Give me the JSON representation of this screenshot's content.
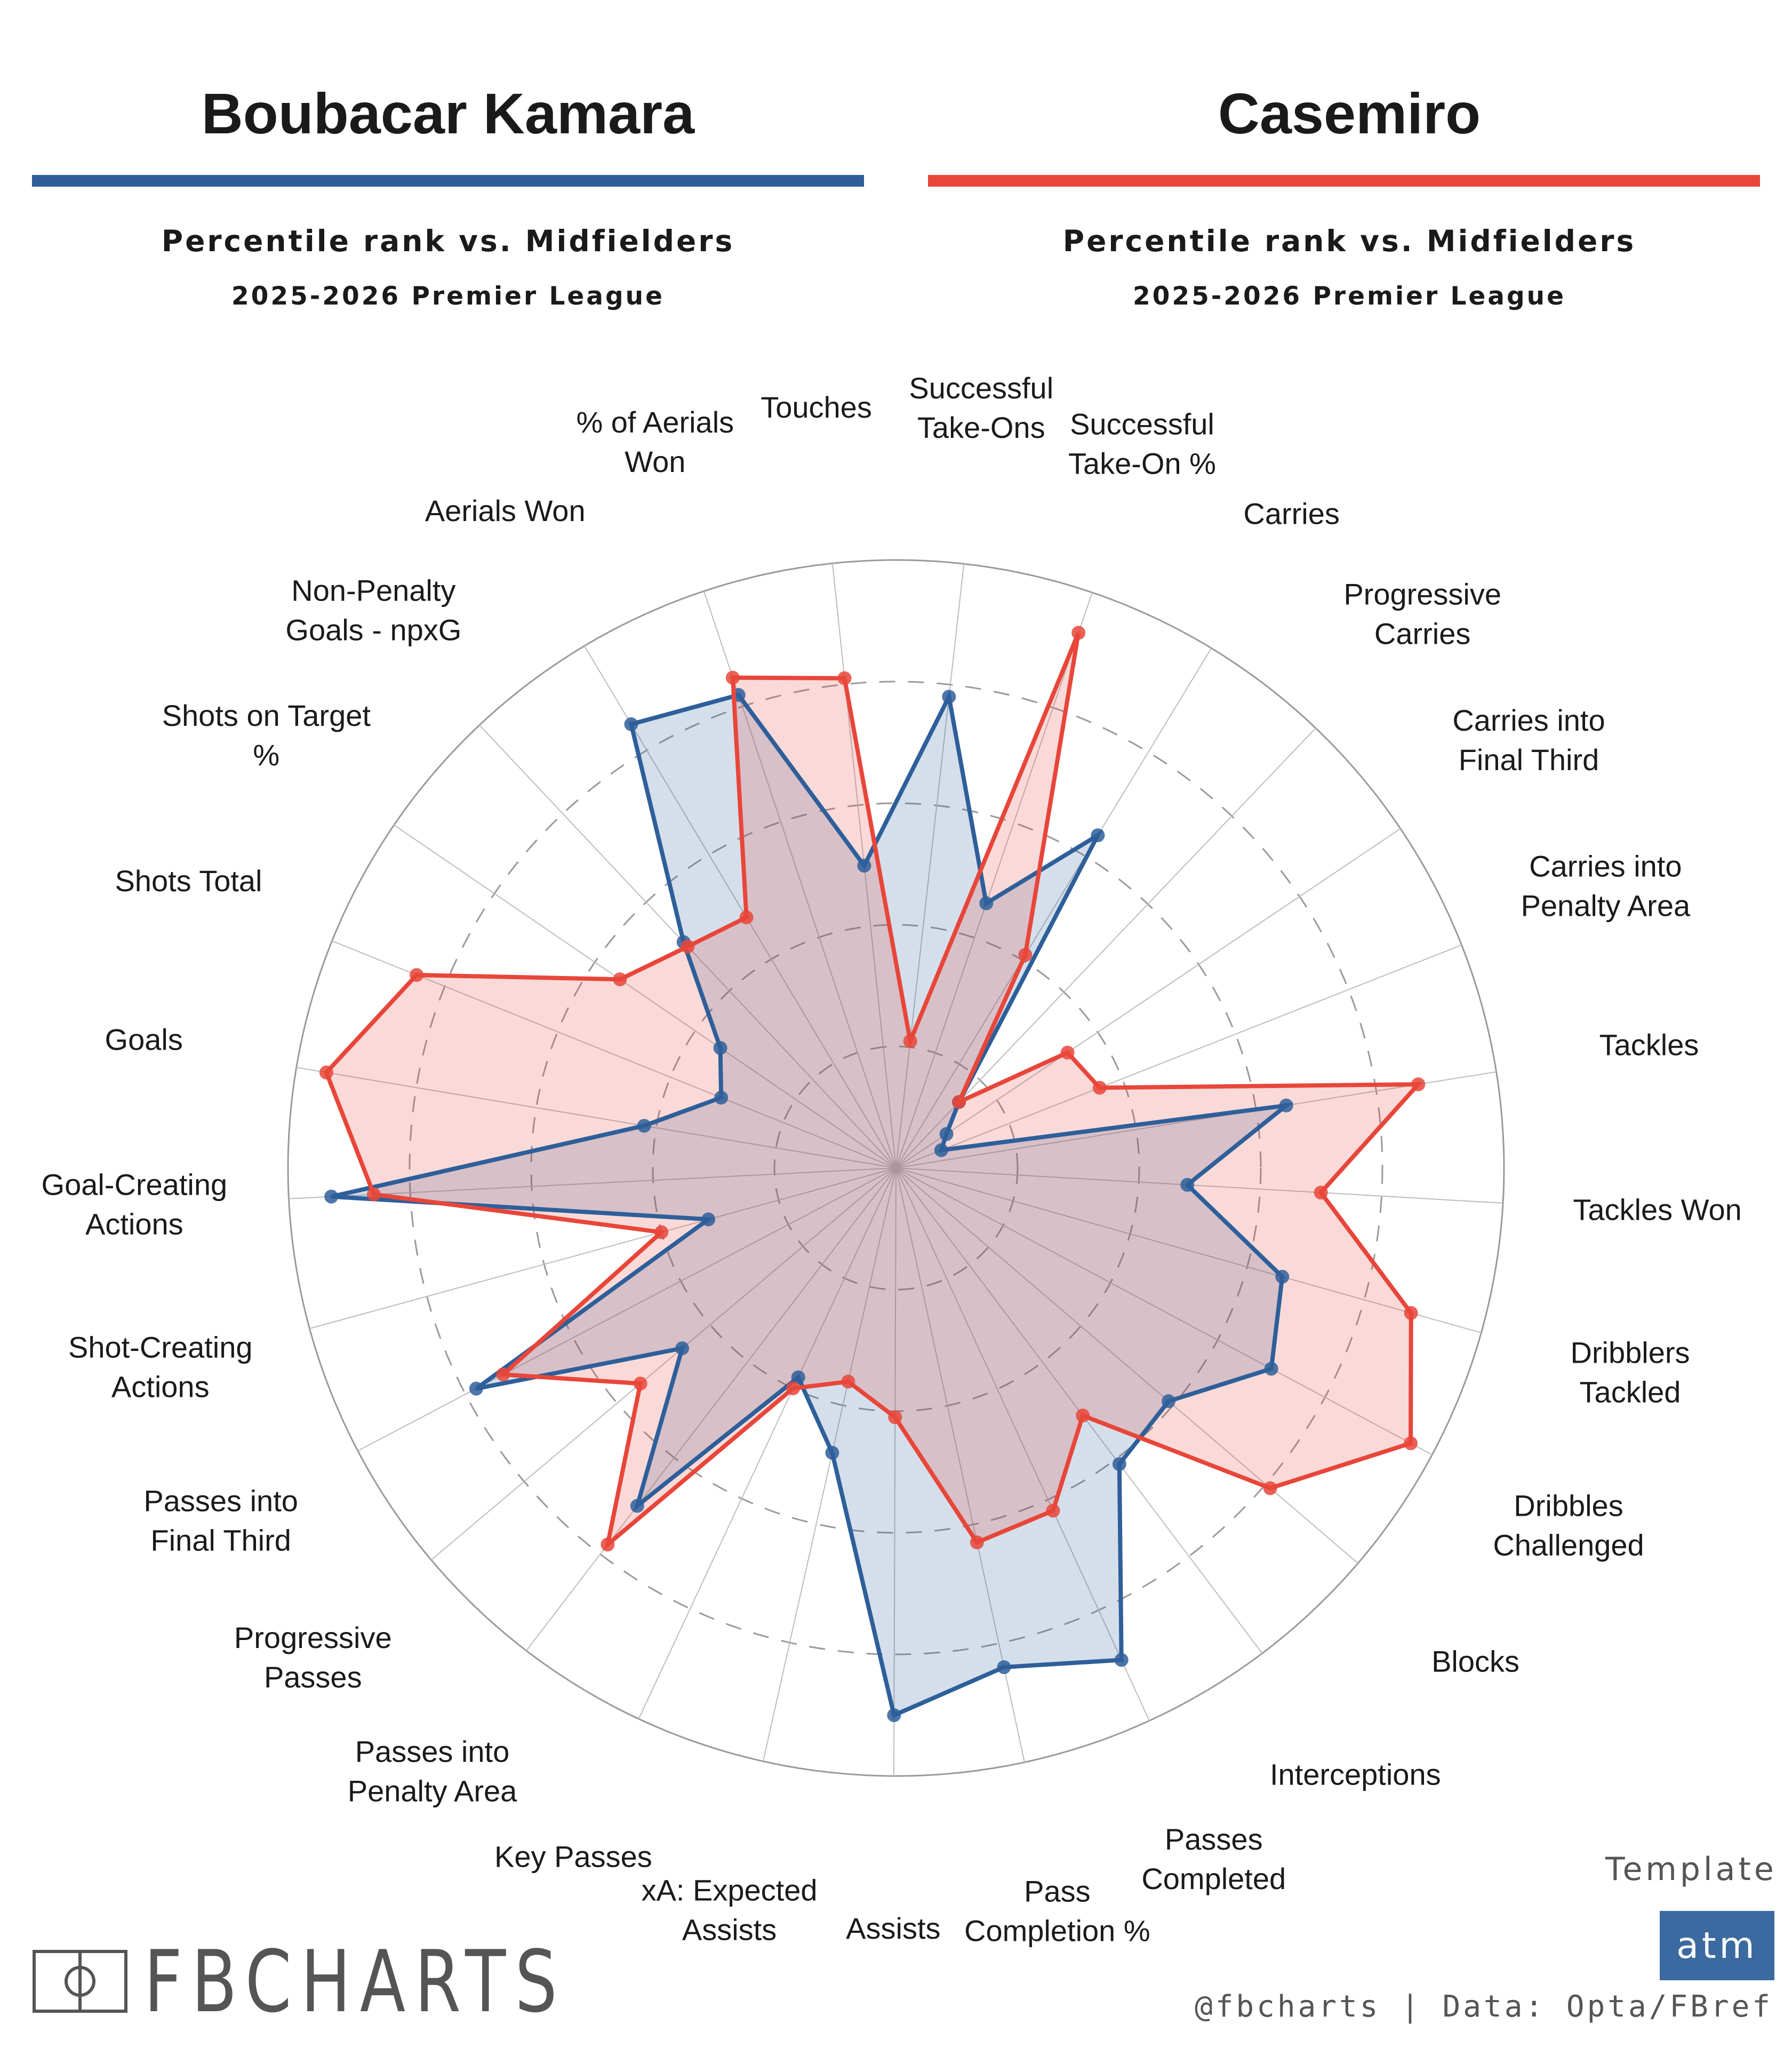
{
  "players": [
    {
      "name": "Boubacar Kamara",
      "color": "#2e5f9a"
    },
    {
      "name": "Casemiro",
      "color": "#e8463a"
    }
  ],
  "subtitle_line1": "Percentile rank vs. Midfielders",
  "subtitle_line2": "2025-2026 Premier League",
  "brand": {
    "text": "FBCHARTS"
  },
  "template": {
    "label": "Template",
    "badge": "atm"
  },
  "credit": "@fbcharts | Data: Opta/FBref",
  "chart_data": {
    "type": "radar",
    "range": [
      0,
      100
    ],
    "rings": [
      20,
      40,
      60,
      80
    ],
    "axes": [
      "Touches",
      "Successful\nTake-Ons",
      "Successful\nTake-On %",
      "Carries",
      "Progressive\nCarries",
      "Carries into\nFinal Third",
      "Carries into\nPenalty Area",
      "Tackles",
      "Tackles Won",
      "Dribblers\nTackled",
      "Dribbles\nChallenged",
      "Blocks",
      "Interceptions",
      "Passes\nCompleted",
      "Pass\nCompletion %",
      "Assists",
      "xA: Expected\nAssists",
      "Key Passes",
      "Passes into\nPenalty Area",
      "Progressive\nPasses",
      "Passes into\nFinal Third",
      "Shot-Creating\nActions",
      "Goal-Creating\nActions",
      "Goals",
      "Shots Total",
      "Shots on Target\n%",
      "Non-Penalty\nGoals - npxG",
      "Aerials Won",
      "% of Aerials\nWon"
    ],
    "series": [
      {
        "name": "Boubacar Kamara",
        "color": "#2e5f9a",
        "values": [
          50,
          78,
          46,
          64,
          15,
          10,
          8,
          65,
          48,
          66,
          70,
          59,
          61,
          89,
          84,
          90,
          48,
          38,
          70,
          46,
          78,
          32,
          93,
          42,
          31,
          35,
          51,
          85,
          82
        ]
      },
      {
        "name": "Casemiro",
        "color": "#e8463a",
        "values": [
          81,
          21,
          93,
          41,
          15,
          34,
          36,
          87,
          70,
          88,
          96,
          81,
          51,
          62,
          63,
          41,
          36,
          40,
          78,
          55,
          73,
          40,
          86,
          95,
          85,
          55,
          50,
          48,
          85
        ]
      }
    ]
  }
}
